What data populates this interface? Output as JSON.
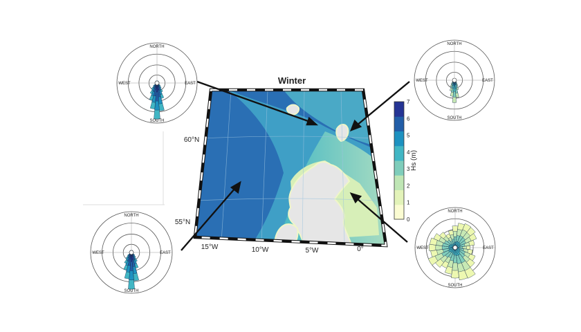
{
  "title": "Winter",
  "colorbar": {
    "label": "Hs (m)",
    "ticks": [
      "0",
      "1",
      "2",
      "3",
      "4",
      "5",
      "6",
      "7"
    ],
    "colors": [
      "#fbfcd2",
      "#e3f3b9",
      "#bfe6b5",
      "#7fcdbb",
      "#41b6c4",
      "#1d91c0",
      "#225ea8",
      "#253494"
    ]
  },
  "map": {
    "sea_deep": "#2a6fb4",
    "sea_mid": "#3f9fc6",
    "sea_shallow": "#8ed3c5",
    "land": "#e6e6e6",
    "lat_labels": [
      "60°N",
      "55°N"
    ],
    "lon_labels": [
      "15°W",
      "10°W",
      "5°W",
      "0°"
    ]
  },
  "roses": [
    {
      "id": "top-left",
      "labels": {
        "n": "NORTH",
        "s": "SOUTH",
        "e": "EAST",
        "w": "WEST"
      },
      "dominant_direction": "south",
      "palette": [
        "#253494",
        "#225ea8",
        "#1d91c0",
        "#41b6c4"
      ]
    },
    {
      "id": "top-right",
      "labels": {
        "n": "NORTH",
        "s": "SOUTH",
        "e": "EAST",
        "w": "WEST"
      },
      "dominant_direction": "south",
      "palette": [
        "#1d91c0",
        "#41b6c4",
        "#7fcdbb",
        "#c7e9b4"
      ]
    },
    {
      "id": "bottom-left",
      "labels": {
        "n": "NORTH",
        "s": "SOUTH",
        "e": "EAST",
        "w": "WEST"
      },
      "dominant_direction": "south",
      "palette": [
        "#253494",
        "#225ea8",
        "#1d91c0",
        "#41b6c4"
      ]
    },
    {
      "id": "bottom-right",
      "labels": {
        "n": "NORTH",
        "s": "SOUTH",
        "e": "EAST",
        "w": "WEST"
      },
      "dominant_direction": "all",
      "palette": [
        "#41b6c4",
        "#7fcdbb",
        "#c7e9b4",
        "#edf8b1"
      ]
    }
  ]
}
